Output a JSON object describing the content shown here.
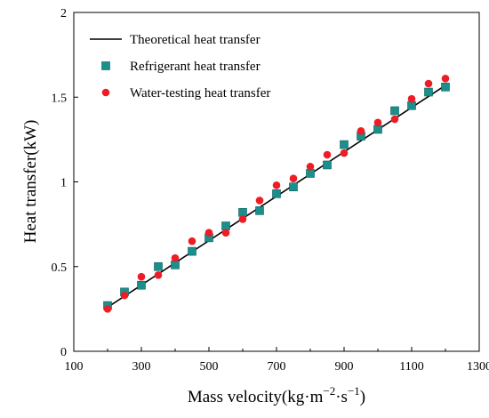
{
  "chart_data": {
    "type": "scatter",
    "xlabel": "Mass velocity(kg·m⁻²·s⁻¹)",
    "xlabel_parts": {
      "prefix": "Mass velocity(kg·m",
      "sup1": "−2",
      "mid": "·s",
      "sup2": "−1",
      "suffix": ")"
    },
    "ylabel": "Heat transfer(kW)",
    "xlim": [
      100,
      1300
    ],
    "ylim": [
      0,
      2
    ],
    "xticks": [
      100,
      300,
      500,
      700,
      900,
      1100,
      1300
    ],
    "xtick_labels": [
      "100",
      "300",
      "500",
      "700",
      "900",
      "1100",
      "1300"
    ],
    "yticks": [
      0,
      0.5,
      1,
      1.5,
      2
    ],
    "ytick_labels": [
      "0",
      "0.5",
      "1",
      "1.5",
      "2"
    ],
    "grid": false,
    "legend_position": "top-left",
    "series": [
      {
        "name": "Theoretical heat transfer",
        "kind": "line",
        "color": "#000000",
        "x": [
          200,
          1200
        ],
        "y": [
          0.26,
          1.57
        ]
      },
      {
        "name": "Refrigerant heat transfer",
        "kind": "square",
        "color": "#1a8f8c",
        "x": [
          200,
          250,
          300,
          350,
          400,
          450,
          500,
          550,
          600,
          650,
          700,
          750,
          800,
          850,
          900,
          950,
          1000,
          1050,
          1100,
          1150,
          1200
        ],
        "y": [
          0.27,
          0.35,
          0.39,
          0.5,
          0.51,
          0.59,
          0.67,
          0.74,
          0.82,
          0.83,
          0.93,
          0.97,
          1.05,
          1.1,
          1.22,
          1.27,
          1.31,
          1.42,
          1.45,
          1.53,
          1.56
        ]
      },
      {
        "name": "Water-testing heat transfer",
        "kind": "circle",
        "color": "#ee1c25",
        "x": [
          200,
          250,
          300,
          350,
          400,
          450,
          500,
          550,
          600,
          650,
          700,
          750,
          800,
          850,
          900,
          950,
          1000,
          1050,
          1100,
          1150,
          1200
        ],
        "y": [
          0.25,
          0.33,
          0.44,
          0.45,
          0.55,
          0.65,
          0.7,
          0.7,
          0.78,
          0.89,
          0.98,
          1.02,
          1.09,
          1.16,
          1.17,
          1.3,
          1.35,
          1.37,
          1.49,
          1.58,
          1.61
        ]
      }
    ]
  }
}
